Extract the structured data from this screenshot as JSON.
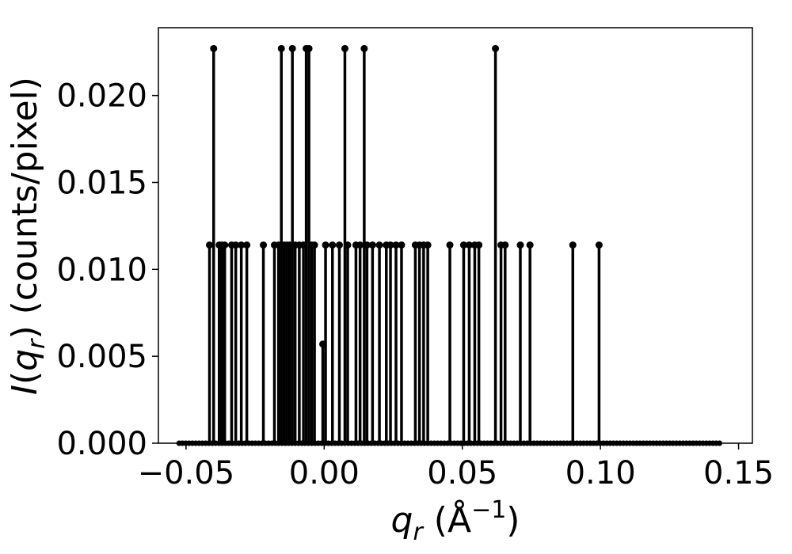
{
  "chart_data": {
    "type": "line",
    "xlabel": "q_r (Å⁻¹)",
    "ylabel": "I(q_r) (counts/pixel)",
    "xlim": [
      -0.06,
      0.155
    ],
    "ylim": [
      0,
      0.0239
    ],
    "x_ticks": [
      -0.05,
      0.0,
      0.05,
      0.1,
      0.15
    ],
    "x_tick_labels": [
      "−0.05",
      "0.00",
      "0.05",
      "0.10",
      "0.15"
    ],
    "y_ticks": [
      0.0,
      0.005,
      0.01,
      0.015,
      0.02
    ],
    "y_tick_labels": [
      "0.000",
      "0.005",
      "0.010",
      "0.015",
      "0.020"
    ],
    "grid": false,
    "series": [
      {
        "color": "#000000",
        "baseline_x_range": [
          -0.0525,
          0.1435
        ],
        "peaks": [
          {
            "x": -0.0415,
            "y": 0.0114
          },
          {
            "x": -0.04,
            "y": 0.0227
          },
          {
            "x": -0.038,
            "y": 0.0114
          },
          {
            "x": -0.037,
            "y": 0.0114
          },
          {
            "x": -0.036,
            "y": 0.0114
          },
          {
            "x": -0.0335,
            "y": 0.0114
          },
          {
            "x": -0.032,
            "y": 0.0114
          },
          {
            "x": -0.03,
            "y": 0.0114
          },
          {
            "x": -0.028,
            "y": 0.0114
          },
          {
            "x": -0.022,
            "y": 0.0114
          },
          {
            "x": -0.018,
            "y": 0.0114
          },
          {
            "x": -0.0165,
            "y": 0.0114
          },
          {
            "x": -0.0155,
            "y": 0.0227
          },
          {
            "x": -0.0145,
            "y": 0.0114
          },
          {
            "x": -0.0135,
            "y": 0.0114
          },
          {
            "x": -0.0125,
            "y": 0.0114
          },
          {
            "x": -0.0115,
            "y": 0.0227
          },
          {
            "x": -0.0105,
            "y": 0.0114
          },
          {
            "x": -0.009,
            "y": 0.0114
          },
          {
            "x": -0.0075,
            "y": 0.0114
          },
          {
            "x": -0.0065,
            "y": 0.0227
          },
          {
            "x": -0.0055,
            "y": 0.0227
          },
          {
            "x": -0.0045,
            "y": 0.0114
          },
          {
            "x": -0.0035,
            "y": 0.0114
          },
          {
            "x": -0.0005,
            "y": 0.0057
          },
          {
            "x": 0.0005,
            "y": 0.0114
          },
          {
            "x": 0.003,
            "y": 0.0114
          },
          {
            "x": 0.0055,
            "y": 0.0114
          },
          {
            "x": 0.0075,
            "y": 0.0227
          },
          {
            "x": 0.0085,
            "y": 0.0114
          },
          {
            "x": 0.0115,
            "y": 0.0114
          },
          {
            "x": 0.013,
            "y": 0.0114
          },
          {
            "x": 0.0145,
            "y": 0.0227
          },
          {
            "x": 0.0155,
            "y": 0.0114
          },
          {
            "x": 0.0175,
            "y": 0.0114
          },
          {
            "x": 0.02,
            "y": 0.0114
          },
          {
            "x": 0.0225,
            "y": 0.0114
          },
          {
            "x": 0.024,
            "y": 0.0114
          },
          {
            "x": 0.026,
            "y": 0.0114
          },
          {
            "x": 0.028,
            "y": 0.0114
          },
          {
            "x": 0.033,
            "y": 0.0114
          },
          {
            "x": 0.0345,
            "y": 0.0114
          },
          {
            "x": 0.036,
            "y": 0.0114
          },
          {
            "x": 0.0375,
            "y": 0.0114
          },
          {
            "x": 0.0455,
            "y": 0.0114
          },
          {
            "x": 0.0505,
            "y": 0.0114
          },
          {
            "x": 0.0525,
            "y": 0.0114
          },
          {
            "x": 0.0545,
            "y": 0.0114
          },
          {
            "x": 0.056,
            "y": 0.0114
          },
          {
            "x": 0.062,
            "y": 0.0227
          },
          {
            "x": 0.064,
            "y": 0.0114
          },
          {
            "x": 0.0655,
            "y": 0.0114
          },
          {
            "x": 0.071,
            "y": 0.0114
          },
          {
            "x": 0.0745,
            "y": 0.0114
          },
          {
            "x": 0.09,
            "y": 0.0114
          },
          {
            "x": 0.0995,
            "y": 0.0114
          }
        ]
      }
    ]
  }
}
